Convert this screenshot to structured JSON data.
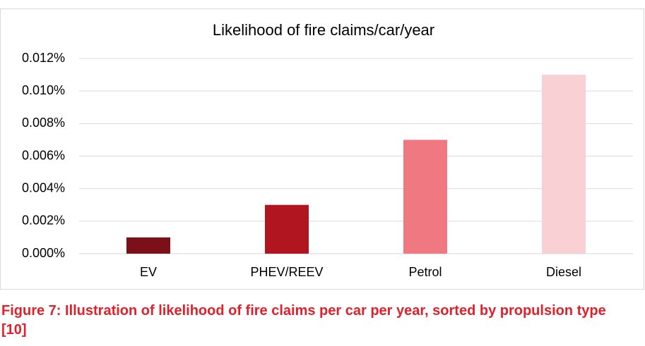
{
  "chart_data": {
    "type": "bar",
    "title": "Likelihood of fire claims/car/year",
    "categories": [
      "EV",
      "PHEV/REEV",
      "Petrol",
      "Diesel"
    ],
    "values": [
      0.001,
      0.003,
      0.007,
      0.011
    ],
    "colors": [
      "#7b1018",
      "#b01520",
      "#f07880",
      "#f9d0d3"
    ],
    "ylim": [
      0,
      0.012
    ],
    "yticks": [
      {
        "value": 0,
        "label": "0.000%"
      },
      {
        "value": 0.002,
        "label": "0.002%"
      },
      {
        "value": 0.004,
        "label": "0.004%"
      },
      {
        "value": 0.006,
        "label": "0.006%"
      },
      {
        "value": 0.008,
        "label": "0.008%"
      },
      {
        "value": 0.01,
        "label": "0.010%"
      },
      {
        "value": 0.012,
        "label": "0.012%"
      }
    ],
    "grid": true
  },
  "caption": "Figure 7: Illustration of likelihood of fire claims per car per year, sorted by propulsion type [10]"
}
